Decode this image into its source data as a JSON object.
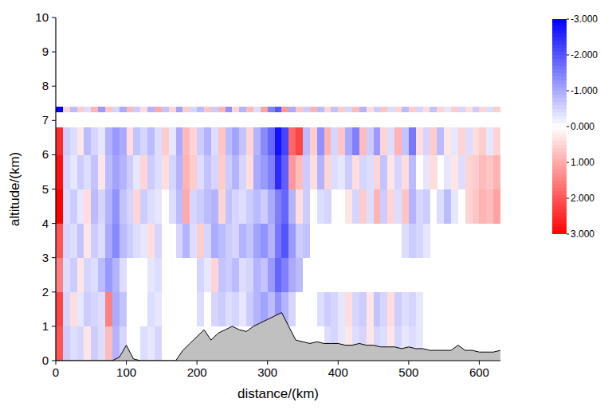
{
  "chart_data": {
    "type": "heatmap",
    "xlabel": "distance/(km)",
    "ylabel": "altitude/(km)",
    "xlim": [
      0,
      630
    ],
    "ylim": [
      0,
      10
    ],
    "xticks": [
      0,
      100,
      200,
      300,
      400,
      500,
      600
    ],
    "yticks": [
      0,
      1,
      2,
      3,
      4,
      5,
      6,
      7,
      8,
      9,
      10
    ],
    "x_edges": [
      0,
      10,
      20,
      30,
      40,
      50,
      60,
      70,
      80,
      90,
      100,
      110,
      120,
      130,
      140,
      150,
      160,
      170,
      180,
      190,
      200,
      210,
      220,
      230,
      240,
      250,
      260,
      270,
      280,
      290,
      300,
      310,
      320,
      330,
      340,
      350,
      360,
      370,
      380,
      390,
      400,
      410,
      420,
      430,
      440,
      450,
      460,
      470,
      480,
      490,
      500,
      510,
      520,
      530,
      540,
      550,
      560,
      570,
      580,
      590,
      600,
      610,
      620,
      630
    ],
    "y_edges": [
      0,
      1,
      2,
      3,
      4,
      5,
      6,
      6.8
    ],
    "cells": [
      [
        2.0,
        -0.6,
        -0.4,
        -0.5,
        0.3,
        -0.6,
        -0.4,
        0.8,
        -0.9,
        -0.5,
        null,
        null,
        -0.4,
        -0.3,
        -0.5,
        null,
        null,
        null,
        null,
        null,
        null,
        null,
        null,
        null,
        null,
        null,
        null,
        null,
        null,
        null,
        null,
        null,
        null,
        null,
        null,
        null,
        null,
        null,
        -0.4,
        -0.5,
        -0.3,
        0.3,
        -0.4,
        -0.5,
        0.3,
        -0.5,
        -0.4,
        0.3,
        -0.5,
        -0.3,
        -0.4,
        -0.3,
        null,
        null,
        null,
        null,
        null,
        null,
        null,
        null,
        null,
        null,
        null
      ],
      [
        2.2,
        -0.5,
        0.4,
        -0.3,
        -0.6,
        -0.5,
        -0.4,
        1.5,
        -1.0,
        -0.7,
        null,
        null,
        null,
        -0.4,
        -0.3,
        null,
        null,
        null,
        null,
        null,
        -0.4,
        null,
        -0.5,
        -0.6,
        -0.4,
        -0.5,
        -0.3,
        -0.6,
        -0.9,
        -1.1,
        -0.8,
        -1.3,
        -0.9,
        -0.5,
        null,
        null,
        null,
        -0.4,
        -0.6,
        -0.5,
        -0.3,
        0.4,
        -0.5,
        -0.6,
        0.3,
        -0.7,
        -0.5,
        0.4,
        -0.6,
        -0.4,
        -0.5,
        -0.3,
        null,
        null,
        null,
        null,
        null,
        null,
        null,
        null,
        null,
        null,
        null
      ],
      [
        1.5,
        -0.4,
        -0.6,
        0.3,
        -0.5,
        -0.4,
        -0.8,
        -1.2,
        -0.9,
        -0.4,
        null,
        null,
        null,
        -0.3,
        -0.4,
        null,
        null,
        null,
        null,
        null,
        -0.5,
        -0.3,
        0.5,
        -0.7,
        -0.6,
        -0.8,
        -0.4,
        -0.5,
        -0.9,
        -0.7,
        -1.2,
        -1.8,
        -1.5,
        -1.0,
        -0.8,
        null,
        null,
        null,
        null,
        null,
        null,
        null,
        null,
        null,
        null,
        null,
        null,
        null,
        null,
        null,
        null,
        null,
        null,
        null,
        null,
        null,
        null,
        null,
        null,
        null,
        null,
        null,
        null
      ],
      [
        2.0,
        -0.5,
        -0.4,
        -0.7,
        0.3,
        -0.6,
        -0.4,
        -1.0,
        -1.4,
        -0.8,
        -0.6,
        -0.4,
        -0.3,
        0.4,
        -0.5,
        null,
        null,
        -0.5,
        -0.9,
        -0.4,
        0.6,
        -0.5,
        -1.0,
        -0.8,
        -0.6,
        -0.5,
        -0.9,
        -0.7,
        -1.1,
        -1.3,
        -0.9,
        -1.6,
        -2.0,
        -1.2,
        -0.6,
        -0.7,
        null,
        null,
        null,
        null,
        null,
        null,
        null,
        null,
        null,
        null,
        null,
        null,
        null,
        -0.4,
        -0.6,
        -0.5,
        -0.3,
        null,
        null,
        null,
        null,
        null,
        null,
        null,
        null,
        null,
        null
      ],
      [
        3.0,
        -0.4,
        -0.6,
        -0.3,
        0.4,
        -0.8,
        -0.5,
        -0.9,
        -1.3,
        -0.7,
        -0.5,
        0.5,
        -0.6,
        -0.4,
        -0.3,
        null,
        -0.4,
        -0.8,
        1.0,
        -0.5,
        -0.6,
        -0.8,
        -0.9,
        0.5,
        -0.7,
        -0.5,
        -0.4,
        -0.6,
        -0.8,
        -0.6,
        -1.0,
        -1.5,
        -1.8,
        -0.9,
        0.4,
        -0.6,
        null,
        -0.4,
        -0.5,
        null,
        null,
        0.3,
        -0.5,
        0.6,
        -0.4,
        0.9,
        -0.6,
        0.5,
        -0.4,
        0.7,
        -0.9,
        -0.5,
        -0.6,
        null,
        -0.4,
        -0.8,
        -0.3,
        null,
        0.5,
        0.7,
        0.9,
        0.8,
        1.1
      ],
      [
        2.8,
        -0.5,
        -0.3,
        -0.6,
        -0.4,
        -0.7,
        0.3,
        -0.8,
        -1.1,
        -0.9,
        -0.6,
        -0.3,
        0.5,
        -0.6,
        -0.4,
        0.4,
        -0.5,
        -0.9,
        0.9,
        0.6,
        -0.4,
        -0.7,
        -0.5,
        0.6,
        -0.6,
        -0.9,
        -0.5,
        0.4,
        -1.0,
        -1.2,
        -1.5,
        -2.5,
        -1.9,
        1.2,
        0.8,
        -0.6,
        0.4,
        -0.9,
        0.5,
        -0.4,
        -0.3,
        -0.6,
        0.4,
        -0.5,
        -0.4,
        0.5,
        -0.7,
        0.3,
        -0.5,
        0.4,
        -0.8,
        null,
        -0.3,
        0.4,
        null,
        -0.3,
        0.3,
        -0.4,
        0.5,
        0.6,
        0.8,
        0.7,
        0.9
      ],
      [
        2.5,
        -0.6,
        -0.4,
        0.3,
        -0.8,
        -0.5,
        -0.3,
        -0.9,
        -1.2,
        -1.0,
        0.4,
        -0.7,
        -0.5,
        -0.8,
        -0.4,
        0.6,
        -0.3,
        -1.0,
        0.8,
        0.5,
        -0.6,
        -0.9,
        -0.4,
        0.7,
        -0.8,
        -1.1,
        -0.7,
        0.5,
        -0.9,
        -1.4,
        -1.8,
        -2.8,
        -2.2,
        1.8,
        2.2,
        -0.8,
        0.6,
        -1.3,
        0.9,
        -0.5,
        0.7,
        -1.0,
        -1.5,
        0.8,
        -0.6,
        -1.2,
        0.5,
        -0.4,
        0.9,
        -0.7,
        -1.6,
        0.4,
        -0.5,
        0.6,
        -0.8,
        0.3,
        -0.3,
        0.5,
        -0.4,
        0.4,
        0.6,
        -0.3,
        0.5
      ]
    ],
    "strip": {
      "y_edges": [
        7.25,
        7.4
      ],
      "values": [
        -3.0,
        0.5,
        -0.8,
        0.6,
        -0.4,
        0.9,
        -1.2,
        0.7,
        -0.5,
        -1.0,
        0.8,
        -0.6,
        0.4,
        -0.9,
        1.0,
        -0.7,
        0.5,
        -1.1,
        0.6,
        -0.5,
        -0.8,
        0.7,
        -0.6,
        0.9,
        -1.3,
        0.5,
        -0.9,
        0.8,
        -0.4,
        1.1,
        -1.5,
        -2.0,
        1.2,
        -1.0,
        0.7,
        -0.6,
        0.9,
        -0.8,
        0.5,
        -0.7,
        0.6,
        -0.5,
        0.8,
        -0.9,
        0.4,
        -0.6,
        0.7,
        -0.4,
        0.5,
        -0.8,
        0.6,
        -0.5,
        0.4,
        -0.7,
        0.5,
        -0.3,
        0.6,
        -0.5,
        0.4,
        -0.6,
        0.5,
        -0.4,
        0.6
      ]
    },
    "terrain": {
      "color": "#c0c0c0",
      "x": [
        0,
        10,
        20,
        30,
        40,
        50,
        60,
        70,
        80,
        90,
        100,
        110,
        120,
        130,
        140,
        150,
        160,
        170,
        180,
        190,
        200,
        210,
        220,
        230,
        240,
        250,
        260,
        270,
        280,
        290,
        300,
        310,
        320,
        330,
        340,
        350,
        360,
        370,
        380,
        390,
        400,
        410,
        420,
        430,
        440,
        450,
        460,
        470,
        480,
        490,
        500,
        510,
        520,
        530,
        540,
        550,
        560,
        570,
        580,
        590,
        600,
        610,
        620,
        630
      ],
      "values": [
        0,
        0,
        0,
        0,
        0,
        0,
        0,
        0,
        0,
        0.1,
        0.45,
        0.05,
        0,
        0,
        0,
        0,
        0,
        0,
        0.3,
        0.5,
        0.7,
        0.9,
        0.6,
        0.8,
        0.9,
        1.0,
        0.9,
        0.85,
        1.0,
        1.1,
        1.2,
        1.3,
        1.4,
        1.0,
        0.6,
        0.55,
        0.5,
        0.55,
        0.5,
        0.5,
        0.5,
        0.45,
        0.45,
        0.5,
        0.45,
        0.45,
        0.4,
        0.4,
        0.4,
        0.35,
        0.4,
        0.35,
        0.35,
        0.3,
        0.3,
        0.3,
        0.3,
        0.45,
        0.3,
        0.3,
        0.25,
        0.25,
        0.25,
        0.3
      ]
    },
    "colorbar": {
      "range": [
        -3,
        3
      ],
      "ticks": [
        {
          "value": -3,
          "label": "-3.000"
        },
        {
          "value": -2,
          "label": "-2.000"
        },
        {
          "value": -1,
          "label": "-1.000"
        },
        {
          "value": 0,
          "label": "0.000"
        },
        {
          "value": 1,
          "label": "1.000"
        },
        {
          "value": 2,
          "label": "2.000"
        },
        {
          "value": 3,
          "label": "3.000"
        }
      ]
    },
    "colors": [
      "#0000ff",
      "#ffffff",
      "#ff0000"
    ]
  }
}
